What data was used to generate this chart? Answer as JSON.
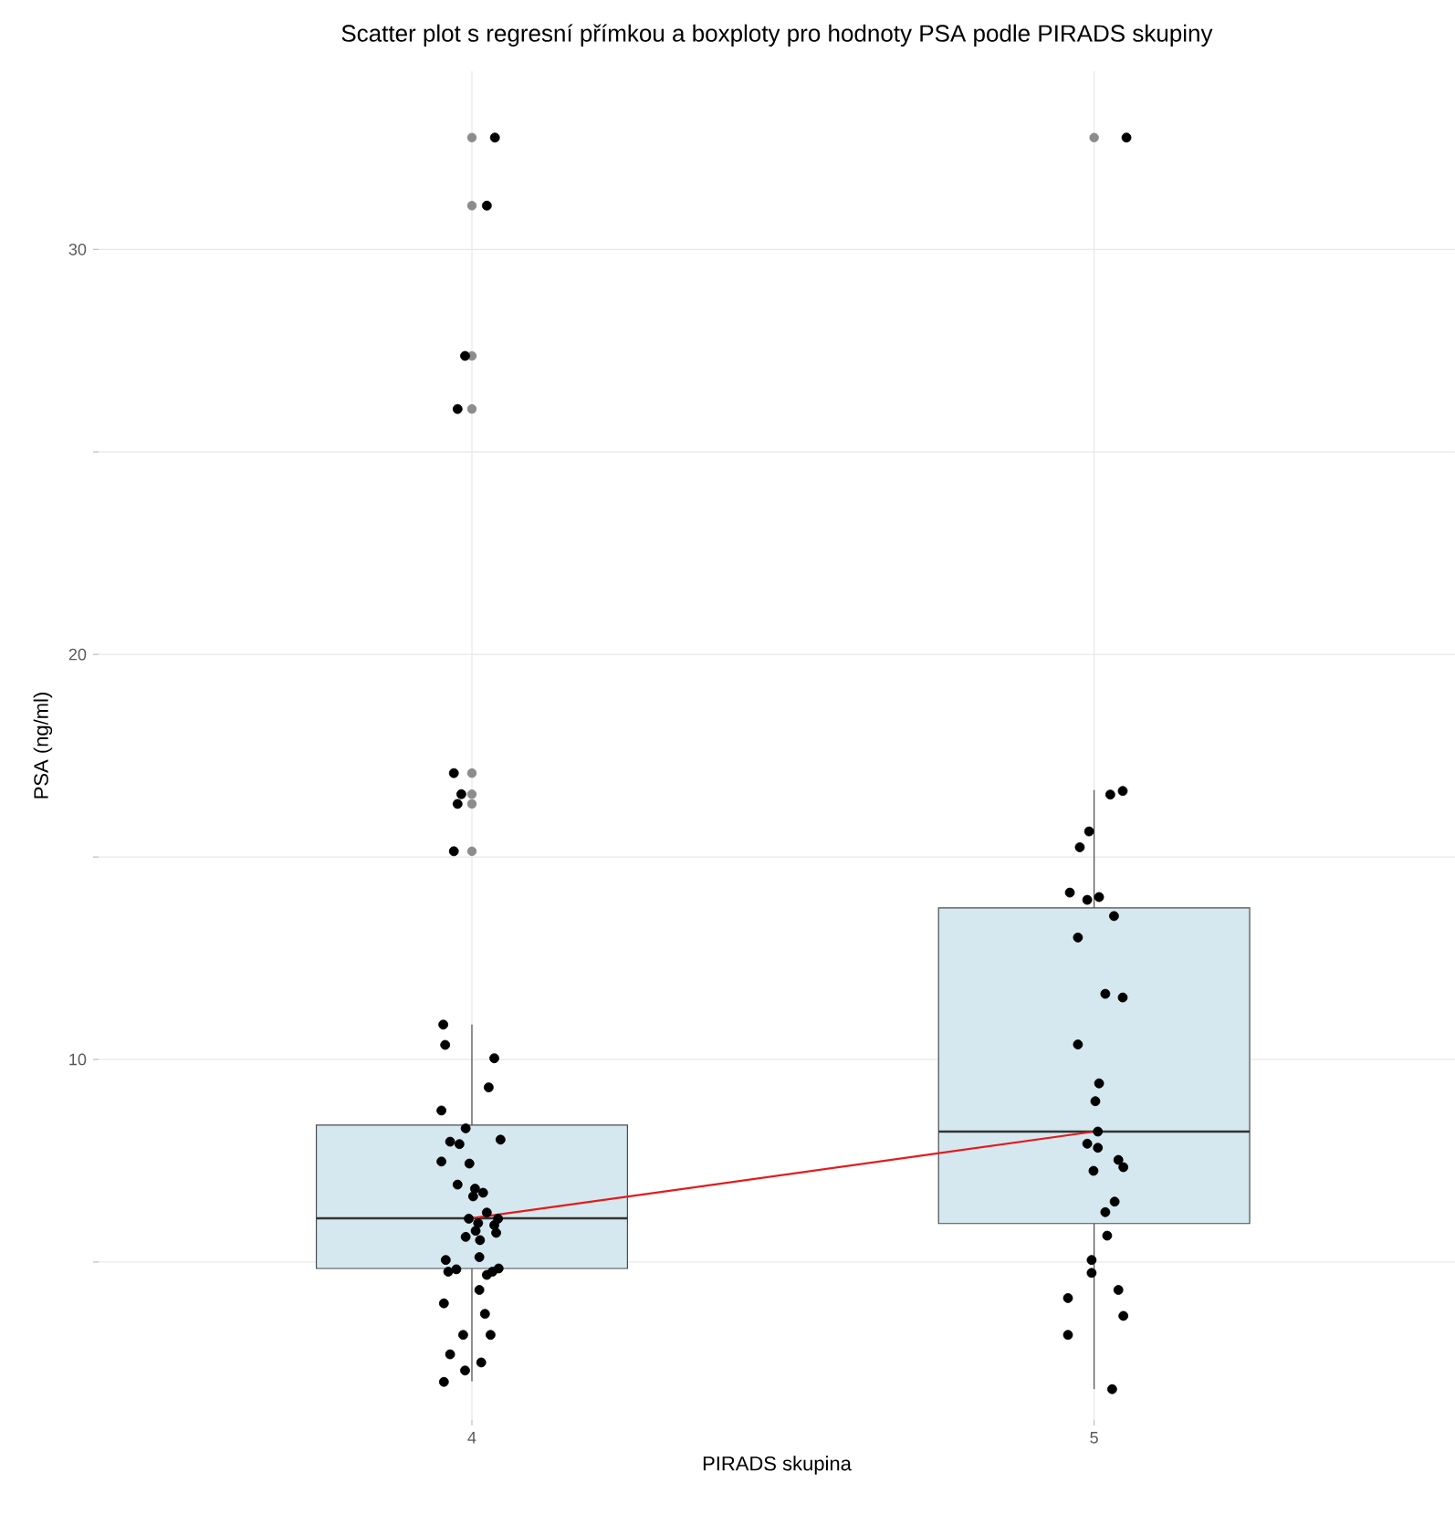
{
  "chart_data": {
    "type": "box",
    "title": "Scatter plot s regresní přímkou a boxploty pro hodnoty PSA podle PIRADS skupiny",
    "xlabel": "PIRADS skupina",
    "ylabel": "PSA (ng/ml)",
    "xlim": [
      3.4,
      5.58
    ],
    "xticks": [
      4,
      5
    ],
    "ylim": [
      1.1,
      34.4
    ],
    "yticks": [
      {
        "value": 5,
        "label": null
      },
      10,
      {
        "value": 15,
        "label": null
      },
      20,
      {
        "value": 25,
        "label": null
      },
      30
    ],
    "grid": true,
    "series": [
      {
        "type": "box",
        "color": "#d5e8ef",
        "x": [
          4,
          5
        ],
        "boxes": [
          {
            "low": 2.05,
            "q1": 4.84,
            "median": 6.08,
            "q3": 8.38,
            "high": 10.86,
            "outliers": [
              32.76,
              31.08,
              27.37,
              26.06,
              17.07,
              16.55,
              16.31,
              15.14
            ]
          },
          {
            "low": 1.86,
            "q1": 5.95,
            "median": 8.22,
            "q3": 13.74,
            "high": 16.65,
            "outliers": [
              32.76
            ]
          }
        ]
      },
      {
        "type": "line",
        "color": "#e41a1c",
        "x": [
          4,
          5
        ],
        "values": [
          6.08,
          8.22
        ],
        "line_style": "solid",
        "marker": "none"
      },
      {
        "type": "scatter",
        "color": "#000000",
        "marker": "circle",
        "x": [
          3.954,
          3.957,
          4.036,
          4.027,
          3.951,
          3.99,
          4.046,
          3.965,
          3.98,
          3.951,
          3.996,
          3.977,
          4.005,
          4.018,
          4.002,
          4.024,
          3.995,
          4.01,
          4.036,
          4.042,
          4.006,
          3.99,
          4.013,
          4.039,
          4.012,
          3.958,
          3.962,
          3.975,
          4.024,
          4.033,
          4.043,
          4.012,
          3.955,
          4.021,
          3.986,
          4.03,
          3.965,
          4.015,
          3.989,
          3.955,
          4.037,
          4.024,
          3.989,
          3.977,
          3.971,
          3.983,
          3.977,
          3.971,
          5.046,
          5.026,
          4.992,
          4.977,
          4.961,
          4.989,
          5.008,
          5.032,
          4.974,
          5.018,
          5.046,
          4.974,
          5.008,
          5.002,
          5.006,
          4.989,
          5.006,
          5.039,
          5.047,
          4.999,
          5.033,
          5.018,
          5.021,
          4.996,
          4.996,
          5.039,
          4.958,
          5.047,
          4.958,
          5.029,
          5.052
        ],
        "values": [
          10.86,
          10.36,
          10.03,
          9.31,
          8.74,
          8.3,
          8.02,
          7.97,
          7.91,
          7.48,
          7.43,
          6.91,
          6.81,
          6.71,
          6.62,
          6.22,
          6.07,
          5.96,
          5.91,
          6.07,
          5.77,
          5.62,
          5.54,
          5.72,
          5.12,
          5.05,
          4.76,
          4.82,
          4.68,
          4.76,
          4.84,
          4.31,
          3.98,
          3.72,
          3.2,
          3.2,
          2.72,
          2.52,
          2.32,
          2.04,
          32.76,
          31.08,
          27.37,
          26.06,
          17.07,
          16.55,
          16.31,
          15.14,
          16.63,
          16.54,
          15.63,
          15.24,
          14.12,
          13.94,
          14.01,
          13.54,
          13.01,
          11.62,
          11.53,
          10.37,
          9.41,
          8.97,
          8.22,
          7.92,
          7.82,
          7.52,
          7.34,
          7.25,
          6.49,
          6.23,
          5.65,
          5.05,
          4.73,
          4.31,
          4.11,
          3.67,
          3.2,
          1.86,
          32.76
        ]
      }
    ]
  }
}
